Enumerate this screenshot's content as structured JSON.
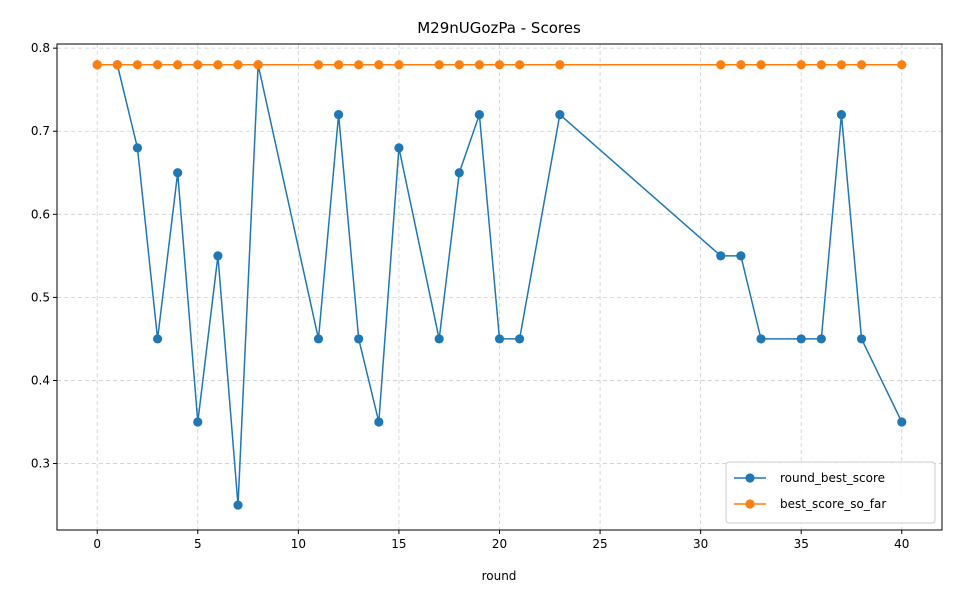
{
  "chart_data": {
    "type": "line",
    "title": "M29nUGozPa - Scores",
    "xlabel": "round",
    "ylabel": "",
    "xlim": [
      -2,
      42
    ],
    "ylim": [
      0.22,
      0.805
    ],
    "xticks": [
      0,
      5,
      10,
      15,
      20,
      25,
      30,
      35,
      40
    ],
    "yticks": [
      0.3,
      0.4,
      0.5,
      0.6,
      0.7,
      0.8
    ],
    "ytick_labels": [
      "0.3",
      "0.4",
      "0.5",
      "0.6",
      "0.7",
      "0.8"
    ],
    "grid": true,
    "legend_position": "bottom-right",
    "x": [
      0,
      1,
      2,
      3,
      4,
      5,
      6,
      7,
      8,
      11,
      12,
      13,
      14,
      15,
      17,
      18,
      19,
      20,
      21,
      23,
      31,
      32,
      33,
      35,
      36,
      37,
      38,
      40
    ],
    "series": [
      {
        "name": "round_best_score",
        "color": "#1f77b4",
        "values": [
          0.78,
          0.78,
          0.68,
          0.45,
          0.65,
          0.35,
          0.55,
          0.25,
          0.78,
          0.45,
          0.72,
          0.45,
          0.35,
          0.68,
          0.45,
          0.65,
          0.72,
          0.45,
          0.45,
          0.72,
          0.55,
          0.55,
          0.45,
          0.45,
          0.45,
          0.72,
          0.45,
          0.35
        ]
      },
      {
        "name": "best_score_so_far",
        "color": "#ff7f0e",
        "values": [
          0.78,
          0.78,
          0.78,
          0.78,
          0.78,
          0.78,
          0.78,
          0.78,
          0.78,
          0.78,
          0.78,
          0.78,
          0.78,
          0.78,
          0.78,
          0.78,
          0.78,
          0.78,
          0.78,
          0.78,
          0.78,
          0.78,
          0.78,
          0.78,
          0.78,
          0.78,
          0.78,
          0.78
        ]
      }
    ]
  }
}
